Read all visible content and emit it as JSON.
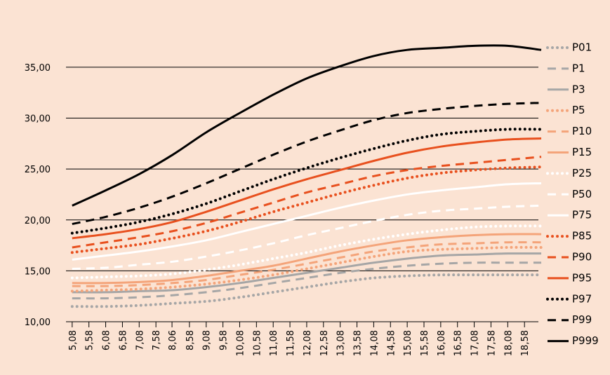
{
  "chart_data": {
    "type": "line",
    "background": "#fbe3d3",
    "xlim": [
      5.0,
      19.1
    ],
    "ylim": [
      10,
      40.5
    ],
    "xticks": [
      {
        "value": 5.08,
        "label": "5,08"
      },
      {
        "value": 5.58,
        "label": "5,58"
      },
      {
        "value": 6.08,
        "label": "6,08"
      },
      {
        "value": 6.58,
        "label": "6,58"
      },
      {
        "value": 7.08,
        "label": "7,08"
      },
      {
        "value": 7.58,
        "label": "7,58"
      },
      {
        "value": 8.06,
        "label": "8,06"
      },
      {
        "value": 8.58,
        "label": "8,58"
      },
      {
        "value": 9.08,
        "label": "9,08"
      },
      {
        "value": 9.58,
        "label": "9,58"
      },
      {
        "value": 10.08,
        "label": "10,08"
      },
      {
        "value": 10.58,
        "label": "10,58"
      },
      {
        "value": 11.08,
        "label": "11,08"
      },
      {
        "value": 11.58,
        "label": "11,58"
      },
      {
        "value": 12.08,
        "label": "12,08"
      },
      {
        "value": 12.58,
        "label": "12,58"
      },
      {
        "value": 13.08,
        "label": "13,08"
      },
      {
        "value": 13.58,
        "label": "13,58"
      },
      {
        "value": 14.08,
        "label": "14,08"
      },
      {
        "value": 14.58,
        "label": "14,58"
      },
      {
        "value": 15.08,
        "label": "15,08"
      },
      {
        "value": 15.58,
        "label": "15,58"
      },
      {
        "value": 16.08,
        "label": "16,08"
      },
      {
        "value": 16.58,
        "label": "16,58"
      },
      {
        "value": 17.08,
        "label": "17,08"
      },
      {
        "value": 17.58,
        "label": "17,58"
      },
      {
        "value": 18.08,
        "label": "18,08"
      },
      {
        "value": 18.58,
        "label": "18,58"
      }
    ],
    "yticks": [
      {
        "value": 10,
        "label": "10,00"
      },
      {
        "value": 15,
        "label": "15,00"
      },
      {
        "value": 20,
        "label": "20,00"
      },
      {
        "value": 25,
        "label": "25,00"
      },
      {
        "value": 30,
        "label": "30,00"
      },
      {
        "value": 35,
        "label": "35,00"
      }
    ],
    "grid": true,
    "legend": "right",
    "x": [
      5.08,
      6.08,
      7.08,
      8.08,
      9.08,
      10.08,
      11.08,
      12.08,
      13.08,
      14.08,
      15.08,
      16.08,
      17.08,
      18.08,
      19.08
    ],
    "series": [
      {
        "name": "P01",
        "color": "#a6a6a6",
        "style": "dotted",
        "values": [
          11.5,
          11.5,
          11.6,
          11.8,
          12.0,
          12.4,
          12.9,
          13.4,
          13.9,
          14.3,
          14.5,
          14.6,
          14.6,
          14.6,
          14.6
        ]
      },
      {
        "name": "P1",
        "color": "#a6a6a6",
        "style": "dashed",
        "values": [
          12.3,
          12.3,
          12.4,
          12.6,
          12.9,
          13.3,
          13.8,
          14.3,
          14.8,
          15.2,
          15.5,
          15.7,
          15.8,
          15.8,
          15.8
        ]
      },
      {
        "name": "P3",
        "color": "#a6a6a6",
        "style": "solid",
        "values": [
          12.9,
          12.9,
          13.0,
          13.1,
          13.4,
          13.8,
          14.3,
          14.8,
          15.3,
          15.8,
          16.2,
          16.5,
          16.6,
          16.7,
          16.7
        ]
      },
      {
        "name": "P5",
        "color": "#f4a47a",
        "style": "dotted",
        "values": [
          13.0,
          13.1,
          13.2,
          13.4,
          13.7,
          14.1,
          14.6,
          15.2,
          15.8,
          16.4,
          16.9,
          17.1,
          17.2,
          17.3,
          17.3
        ]
      },
      {
        "name": "P10",
        "color": "#f4a47a",
        "style": "dashed",
        "values": [
          13.5,
          13.5,
          13.6,
          13.8,
          14.1,
          14.6,
          15.1,
          15.7,
          16.3,
          16.9,
          17.3,
          17.6,
          17.7,
          17.8,
          17.8
        ]
      },
      {
        "name": "P15",
        "color": "#f4a47a",
        "style": "solid",
        "values": [
          13.8,
          13.8,
          13.9,
          14.1,
          14.5,
          15.0,
          15.5,
          16.2,
          16.9,
          17.5,
          18.0,
          18.3,
          18.5,
          18.6,
          18.6
        ]
      },
      {
        "name": "P25",
        "color": "#ffffff",
        "style": "dotted",
        "values": [
          14.3,
          14.4,
          14.5,
          14.7,
          15.1,
          15.6,
          16.2,
          16.8,
          17.5,
          18.1,
          18.6,
          19.0,
          19.3,
          19.4,
          19.4
        ]
      },
      {
        "name": "P50",
        "color": "#ffffff",
        "style": "dashed",
        "values": [
          15.2,
          15.3,
          15.6,
          15.9,
          16.4,
          17.0,
          17.7,
          18.5,
          19.2,
          19.9,
          20.5,
          20.9,
          21.1,
          21.3,
          21.4
        ]
      },
      {
        "name": "P75",
        "color": "#ffffff",
        "style": "solid",
        "values": [
          16.1,
          16.5,
          16.9,
          17.4,
          18.0,
          18.8,
          19.6,
          20.4,
          21.2,
          21.9,
          22.5,
          22.9,
          23.2,
          23.5,
          23.6
        ]
      },
      {
        "name": "P85",
        "color": "#e8501e",
        "style": "dotted",
        "values": [
          16.8,
          17.2,
          17.6,
          18.2,
          18.9,
          19.8,
          20.8,
          21.7,
          22.6,
          23.4,
          24.1,
          24.6,
          24.9,
          25.1,
          25.2
        ]
      },
      {
        "name": "P90",
        "color": "#e8501e",
        "style": "dashed",
        "values": [
          17.3,
          17.8,
          18.3,
          18.9,
          19.7,
          20.7,
          21.7,
          22.7,
          23.5,
          24.3,
          24.9,
          25.3,
          25.6,
          25.9,
          26.2
        ]
      },
      {
        "name": "P95",
        "color": "#e8501e",
        "style": "solid",
        "values": [
          18.2,
          18.6,
          19.1,
          19.8,
          20.8,
          21.9,
          23.0,
          24.0,
          24.9,
          25.8,
          26.6,
          27.2,
          27.6,
          27.9,
          28.0
        ]
      },
      {
        "name": "P97",
        "color": "#000000",
        "style": "dotted",
        "values": [
          18.7,
          19.2,
          19.8,
          20.6,
          21.6,
          22.8,
          24.0,
          25.1,
          26.1,
          27.0,
          27.8,
          28.4,
          28.7,
          28.9,
          28.9
        ]
      },
      {
        "name": "P99",
        "color": "#000000",
        "style": "dashed",
        "values": [
          19.6,
          20.3,
          21.2,
          22.3,
          23.6,
          25.0,
          26.4,
          27.7,
          28.8,
          29.8,
          30.5,
          30.9,
          31.2,
          31.4,
          31.5
        ]
      },
      {
        "name": "P999",
        "color": "#000000",
        "style": "solid",
        "values": [
          21.4,
          22.9,
          24.5,
          26.4,
          28.6,
          30.5,
          32.3,
          33.9,
          35.1,
          36.1,
          36.7,
          36.9,
          37.1,
          37.1,
          36.7
        ]
      }
    ]
  }
}
